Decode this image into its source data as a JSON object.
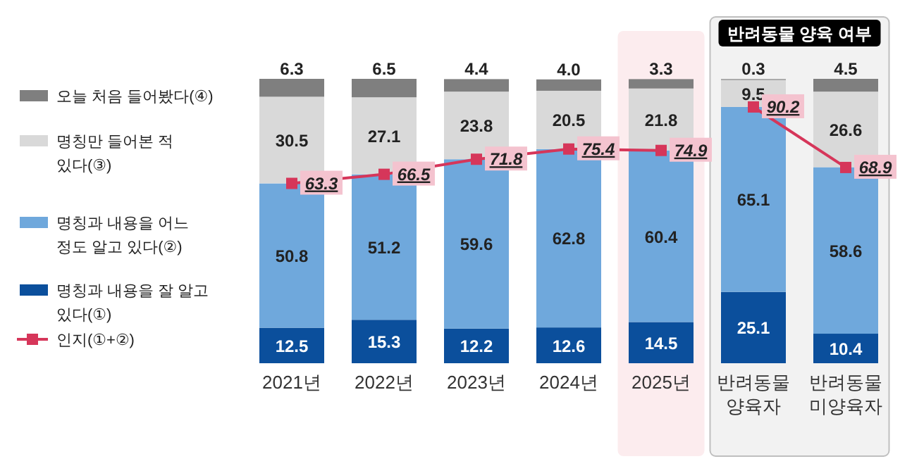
{
  "chart_data": {
    "type": "bar",
    "stacked": true,
    "data_labels": true,
    "legend": "left",
    "categories": [
      "2021년",
      "2022년",
      "2023년",
      "2024년",
      "2025년",
      "반려동물\n양육자",
      "반려동물\n미양육자"
    ],
    "series": [
      {
        "name": "명칭과 내용을 잘 알고\n있다(①)",
        "color": "#0b4f9c",
        "values": [
          12.5,
          15.3,
          12.2,
          12.6,
          14.5,
          25.1,
          10.4
        ]
      },
      {
        "name": "명칭과 내용을 어느\n정도 알고 있다(②)",
        "color": "#6fa8dc",
        "values": [
          50.8,
          51.2,
          59.6,
          62.8,
          60.4,
          65.1,
          58.6
        ]
      },
      {
        "name": "명칭만 들어본 적\n있다(③)",
        "color": "#d9d9d9",
        "values": [
          30.5,
          27.1,
          23.8,
          20.5,
          21.8,
          9.5,
          26.6
        ]
      },
      {
        "name": "오늘 처음 들어봤다(④)",
        "color": "#7f7f7f",
        "values": [
          6.3,
          6.5,
          4.4,
          4.0,
          3.3,
          0.3,
          4.5
        ],
        "value_labels": [
          "6.3",
          "6.5",
          "4.4",
          "4.0",
          "3.3",
          "0.3",
          "4.5"
        ]
      },
      {
        "name": "인지(①+②)",
        "type": "line",
        "marker": "square",
        "color": "#d6365a",
        "values": [
          63.3,
          66.5,
          71.8,
          75.4,
          74.9,
          null,
          null
        ]
      },
      {
        "type": "line",
        "marker": "square",
        "color": "#d6365a",
        "values": [
          null,
          null,
          null,
          null,
          null,
          90.2,
          68.9
        ]
      }
    ],
    "bands": [
      {
        "axis": "x",
        "from": "2025년",
        "to": "2025년",
        "color": "#fcecee"
      },
      {
        "axis": "x",
        "from": "반려동물\n양육자",
        "to": "반려동물\n미양육자",
        "label": "반려동물 양육 여부",
        "color": "#f2f2f2"
      }
    ]
  }
}
